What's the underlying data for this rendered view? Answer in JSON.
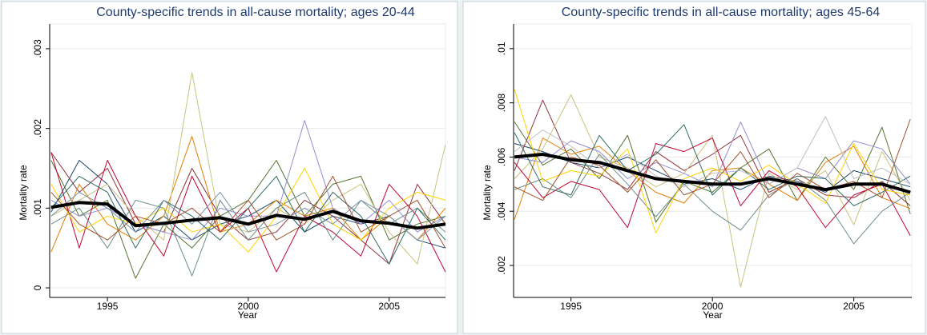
{
  "chart_data": [
    {
      "type": "line",
      "title": "County-specific trends in all-cause mortality; ages 20-44",
      "xlabel": "Year",
      "ylabel": "Mortality rate",
      "x": [
        1993,
        1994,
        1995,
        1996,
        1997,
        1998,
        1999,
        2000,
        2001,
        2002,
        2003,
        2004,
        2005,
        2006,
        2007
      ],
      "xlim": [
        1992.95,
        2007.0
      ],
      "xticks": [
        1995,
        2000,
        2005
      ],
      "ylim": [
        -0.00012,
        0.00331
      ],
      "yticks": [
        0,
        {
          "value": 0.001,
          "label": ".001"
        },
        {
          "value": 0.002,
          "label": ".002"
        },
        {
          "value": 0.003,
          "label": ".003"
        }
      ],
      "grid": true,
      "series": [
        {
          "color": "#1a476f",
          "linewidth": 1,
          "values": [
            0.00095,
            0.0016,
            0.0013,
            0.0007,
            0.0009,
            0.0006,
            0.0008,
            0.0009,
            0.0011,
            0.0007,
            0.0009,
            0.0008,
            0.0009,
            0.0006,
            0.0005
          ]
        },
        {
          "color": "#90353b",
          "linewidth": 1,
          "values": [
            0.0017,
            0.0012,
            0.0015,
            0.0008,
            0.0007,
            0.0015,
            0.0009,
            0.0006,
            0.0007,
            0.0011,
            0.0009,
            0.0006,
            0.0003,
            0.0013,
            0.0008
          ]
        },
        {
          "color": "#55752f",
          "linewidth": 1,
          "values": [
            0.0016,
            0.0009,
            0.0011,
            0.00012,
            0.0008,
            0.0005,
            0.0009,
            0.0011,
            0.0016,
            0.0009,
            0.0013,
            0.0014,
            0.0006,
            0.0008,
            0.0009
          ]
        },
        {
          "color": "#e37e00",
          "linewidth": 1,
          "values": [
            0.00045,
            0.0013,
            0.0008,
            0.0006,
            0.0009,
            0.0019,
            0.0007,
            0.0008,
            0.0011,
            0.0009,
            0.001,
            0.0006,
            0.0009,
            0.0006,
            0.001
          ]
        },
        {
          "color": "#cac27e",
          "linewidth": 1,
          "values": [
            0.0009,
            0.0011,
            0.0013,
            0.0009,
            0.0006,
            0.0027,
            0.0008,
            0.0007,
            0.001,
            0.0008,
            0.0011,
            0.0013,
            0.0007,
            0.0003,
            0.0018
          ]
        },
        {
          "color": "#938dd2",
          "linewidth": 1,
          "values": [
            0.0011,
            0.0009,
            0.001,
            0.0008,
            0.0007,
            0.0006,
            0.001,
            0.0009,
            0.0009,
            0.0021,
            0.001,
            0.0008,
            0.0011,
            0.0007,
            0.0009
          ]
        },
        {
          "color": "#c10534",
          "linewidth": 1,
          "values": [
            0.0017,
            0.0005,
            0.0016,
            0.0009,
            0.0004,
            0.0014,
            0.0007,
            0.001,
            0.0002,
            0.0009,
            0.0007,
            0.0004,
            0.0013,
            0.0009,
            0.0002
          ]
        },
        {
          "color": "#6e8e84",
          "linewidth": 1,
          "values": [
            0.0008,
            0.001,
            0.0005,
            0.0011,
            0.001,
            0.00015,
            0.0011,
            0.0006,
            0.001,
            0.0012,
            0.0006,
            0.0011,
            0.0008,
            0.001,
            0.0007
          ]
        },
        {
          "color": "#ffd200",
          "linewidth": 1,
          "values": [
            0.0013,
            0.0007,
            0.0009,
            0.0008,
            0.001,
            0.0007,
            0.0008,
            0.00045,
            0.0009,
            0.0015,
            0.0008,
            0.0006,
            0.001,
            0.0012,
            0.0011
          ]
        },
        {
          "color": "#2d6d66",
          "linewidth": 1,
          "values": [
            0.001,
            0.0014,
            0.0012,
            0.0005,
            0.0011,
            0.0009,
            0.0006,
            0.001,
            0.0014,
            0.0007,
            0.0012,
            0.0009,
            0.0003,
            0.001,
            0.0006
          ]
        },
        {
          "color": "#7b92a8",
          "linewidth": 1,
          "values": [
            0.0009,
            0.0012,
            0.001,
            0.0007,
            0.0011,
            0.0008,
            0.0012,
            0.0007,
            0.0008,
            0.001,
            0.0008,
            0.0011,
            0.0009,
            0.0006,
            0.0009
          ]
        },
        {
          "color": "#a0522d",
          "linewidth": 1,
          "values": [
            0.0012,
            0.0008,
            0.0006,
            0.0009,
            0.0008,
            0.001,
            0.0007,
            0.0011,
            0.0006,
            0.0008,
            0.0014,
            0.0007,
            0.0009,
            0.0011,
            0.0005
          ]
        },
        {
          "color": "#000000",
          "linewidth": 4,
          "values": [
            0.00101,
            0.00107,
            0.00105,
            0.00078,
            0.00081,
            0.00085,
            0.00088,
            0.0008,
            0.00091,
            0.00086,
            0.00096,
            0.00084,
            0.00081,
            0.00075,
            0.0008
          ]
        }
      ]
    },
    {
      "type": "line",
      "title": "County-specific trends in all-cause mortality; ages 45-64",
      "xlabel": "Year",
      "ylabel": "Mortality rate",
      "x": [
        1993,
        1994,
        1995,
        1996,
        1997,
        1998,
        1999,
        2000,
        2001,
        2002,
        2003,
        2004,
        2005,
        2006,
        2007
      ],
      "xlim": [
        1992.97,
        2007.05
      ],
      "xticks": [
        1995,
        2000,
        2005
      ],
      "ylim": [
        0.00082,
        0.01091
      ],
      "yticks": [
        {
          "value": 0.002,
          "label": ".002"
        },
        {
          "value": 0.004,
          "label": ".004"
        },
        {
          "value": 0.006,
          "label": ".006"
        },
        {
          "value": 0.008,
          "label": ".008"
        },
        {
          "value": 0.01,
          "label": ".01"
        }
      ],
      "grid": true,
      "series": [
        {
          "color": "#1a476f",
          "linewidth": 1,
          "values": [
            0.0065,
            0.0062,
            0.0058,
            0.0056,
            0.006,
            0.0055,
            0.005,
            0.0052,
            0.0048,
            0.0053,
            0.0051,
            0.0047,
            0.0055,
            0.0052,
            0.0049
          ]
        },
        {
          "color": "#90353b",
          "linewidth": 1,
          "values": [
            0.0055,
            0.0081,
            0.0058,
            0.0054,
            0.0048,
            0.0062,
            0.0055,
            0.0061,
            0.0068,
            0.0047,
            0.0052,
            0.0046,
            0.0045,
            0.0051,
            0.0042
          ]
        },
        {
          "color": "#55752f",
          "linewidth": 1,
          "values": [
            0.0073,
            0.0057,
            0.0063,
            0.0052,
            0.0068,
            0.0036,
            0.0051,
            0.0047,
            0.0056,
            0.0063,
            0.0044,
            0.006,
            0.0048,
            0.0071,
            0.0039
          ]
        },
        {
          "color": "#e37e00",
          "linewidth": 1,
          "values": [
            0.0037,
            0.0067,
            0.0061,
            0.0064,
            0.0055,
            0.0047,
            0.0043,
            0.0055,
            0.0056,
            0.005,
            0.0044,
            0.0058,
            0.0064,
            0.0045,
            0.0041
          ]
        },
        {
          "color": "#cac27e",
          "linewidth": 1,
          "values": [
            0.0052,
            0.0063,
            0.0083,
            0.006,
            0.0056,
            0.0049,
            0.0054,
            0.0068,
            0.0012,
            0.0054,
            0.0048,
            0.0055,
            0.0035,
            0.0062,
            0.0044
          ]
        },
        {
          "color": "#938dd2",
          "linewidth": 1,
          "values": [
            0.006,
            0.0058,
            0.0066,
            0.0062,
            0.0052,
            0.0058,
            0.0054,
            0.0049,
            0.0073,
            0.005,
            0.0056,
            0.0052,
            0.0066,
            0.0063,
            0.005
          ]
        },
        {
          "color": "#c10534",
          "linewidth": 1,
          "values": [
            0.0058,
            0.0045,
            0.0051,
            0.0048,
            0.0034,
            0.0065,
            0.0062,
            0.0067,
            0.0042,
            0.0055,
            0.0049,
            0.0034,
            0.0046,
            0.005,
            0.0031
          ]
        },
        {
          "color": "#6e8e84",
          "linewidth": 1,
          "values": [
            0.0048,
            0.0052,
            0.0045,
            0.0061,
            0.005,
            0.0038,
            0.005,
            0.004,
            0.0033,
            0.0046,
            0.0052,
            0.0044,
            0.0028,
            0.004,
            0.0047
          ]
        },
        {
          "color": "#ffd200",
          "linewidth": 1,
          "values": [
            0.0085,
            0.0051,
            0.0055,
            0.0053,
            0.0063,
            0.0032,
            0.0052,
            0.0056,
            0.0051,
            0.0057,
            0.005,
            0.0043,
            0.0065,
            0.0048,
            0.0046
          ]
        },
        {
          "color": "#2d6d66",
          "linewidth": 1,
          "values": [
            0.0069,
            0.0049,
            0.0046,
            0.0068,
            0.0055,
            0.0061,
            0.0072,
            0.0046,
            0.0056,
            0.0048,
            0.0053,
            0.0052,
            0.0042,
            0.0047,
            0.0053
          ]
        },
        {
          "color": "#bfbfbf",
          "linewidth": 1,
          "values": [
            0.0062,
            0.007,
            0.0064,
            0.0056,
            0.0061,
            0.0053,
            0.0049,
            0.0054,
            0.0055,
            0.005,
            0.0056,
            0.0075,
            0.0052,
            0.0056,
            0.005
          ]
        },
        {
          "color": "#a0522d",
          "linewidth": 1,
          "values": [
            0.0049,
            0.0044,
            0.006,
            0.0057,
            0.0047,
            0.0059,
            0.0046,
            0.005,
            0.0062,
            0.0045,
            0.0054,
            0.0048,
            0.0051,
            0.0045,
            0.0074
          ]
        },
        {
          "color": "#000000",
          "linewidth": 4,
          "values": [
            0.006,
            0.0061,
            0.0059,
            0.0058,
            0.0055,
            0.0052,
            0.0051,
            0.005,
            0.005,
            0.0052,
            0.005,
            0.0048,
            0.005,
            0.005,
            0.0047
          ]
        }
      ]
    }
  ]
}
